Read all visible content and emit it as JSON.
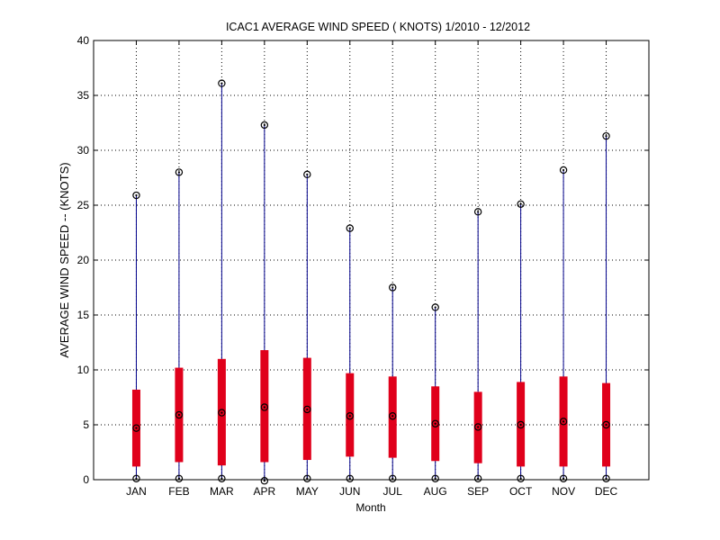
{
  "chart_data": {
    "type": "box",
    "title": "ICAC1  AVERAGE WIND SPEED ( KNOTS) 1/2010 - 12/2012",
    "xlabel": "Month",
    "ylabel": "AVERAGE WIND SPEED -- (KNOTS)",
    "ylim": [
      0,
      40
    ],
    "yticks": [
      "0",
      "5",
      "10",
      "15",
      "20",
      "25",
      "30",
      "35",
      "40"
    ],
    "grid": true,
    "categories": [
      "JAN",
      "FEB",
      "MAR",
      "APR",
      "MAY",
      "JUN",
      "JUL",
      "AUG",
      "SEP",
      "OCT",
      "NOV",
      "DEC"
    ],
    "series": [
      {
        "min": [
          0.1,
          0.1,
          0.1,
          -0.1,
          0.1,
          0.1,
          0.1,
          0.1,
          0.1,
          0.1,
          0.1,
          0.1
        ],
        "q1": [
          1.2,
          1.6,
          1.3,
          1.6,
          1.8,
          2.1,
          2.0,
          1.7,
          1.5,
          1.2,
          1.2,
          1.2
        ],
        "median": [
          4.7,
          5.9,
          6.1,
          6.6,
          6.4,
          5.8,
          5.8,
          5.1,
          4.8,
          5.0,
          5.3,
          5.0
        ],
        "q3": [
          8.2,
          10.2,
          11.0,
          11.8,
          11.1,
          9.7,
          9.4,
          8.5,
          8.0,
          8.9,
          9.4,
          8.8
        ],
        "max": [
          25.9,
          28.0,
          36.1,
          32.3,
          27.8,
          22.9,
          17.5,
          15.7,
          24.4,
          25.1,
          28.2,
          31.3
        ]
      }
    ],
    "colors": {
      "box": "#e0001b",
      "whisker": "#00008b",
      "marker": "#000000",
      "grid": "#000000"
    }
  }
}
